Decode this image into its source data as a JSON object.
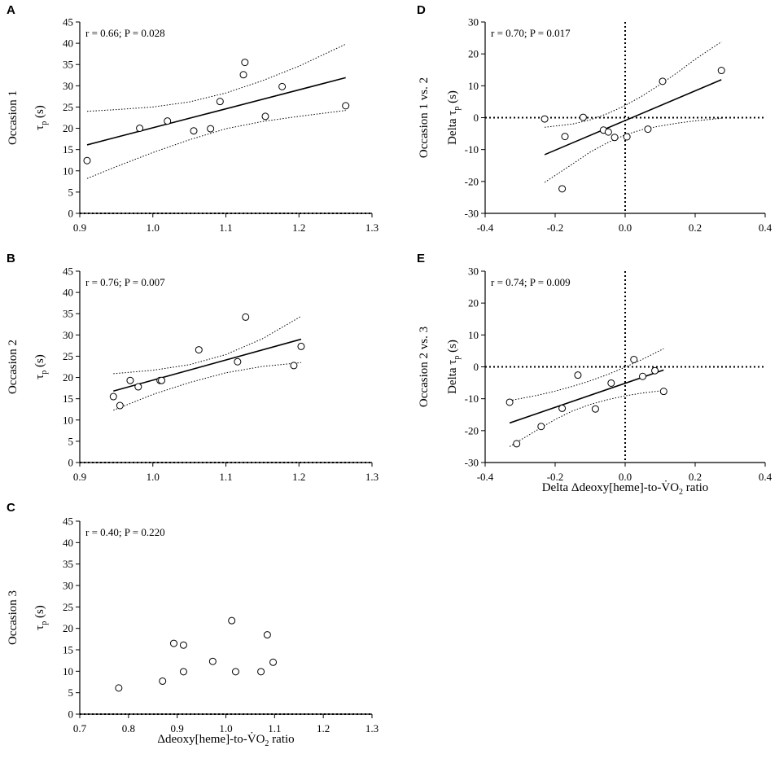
{
  "figure": {
    "x_axis_title_prefix": "Δdeoxy[heme]-to-",
    "x_axis_title_vo2": "V̇O",
    "x_axis_title_sub": "2",
    "x_axis_title_suffix": " ratio",
    "delta_x_axis_title_prefix": "Delta Δdeoxy[heme]-to-",
    "tau_symbol": "τ",
    "tau_subscript": "p",
    "tau_unit": " (s)",
    "delta_prefix": "Delta "
  },
  "chart_data": [
    {
      "id": "A",
      "type": "scatter",
      "panel_label": "A",
      "row_label": "Occasion 1",
      "stat_text": "r = 0.66; P = 0.028",
      "xlim": [
        0.9,
        1.3
      ],
      "xticks": [
        0.9,
        1.0,
        1.1,
        1.2,
        1.3
      ],
      "ylim": [
        0,
        45
      ],
      "yticks": [
        0,
        5,
        10,
        15,
        20,
        25,
        30,
        35,
        40,
        45
      ],
      "xticklabels": [
        "0.9",
        "1.0",
        "1.1",
        "1.2",
        "1.3"
      ],
      "yticklabels": [
        "0",
        "5",
        "10",
        "15",
        "20",
        "25",
        "30",
        "35",
        "40",
        "45"
      ],
      "points": [
        [
          0.91,
          12.4
        ],
        [
          0.982,
          20.0
        ],
        [
          1.02,
          21.7
        ],
        [
          1.056,
          19.4
        ],
        [
          1.079,
          19.9
        ],
        [
          1.092,
          26.3
        ],
        [
          1.124,
          32.6
        ],
        [
          1.126,
          35.5
        ],
        [
          1.154,
          22.8
        ],
        [
          1.177,
          29.8
        ],
        [
          1.264,
          25.3
        ]
      ],
      "fit": [
        [
          0.91,
          16.1
        ],
        [
          1.264,
          31.9
        ]
      ],
      "ci_upper": [
        [
          0.91,
          24.0
        ],
        [
          0.95,
          24.4
        ],
        [
          1.0,
          25.0
        ],
        [
          1.05,
          26.2
        ],
        [
          1.1,
          28.3
        ],
        [
          1.15,
          31.2
        ],
        [
          1.2,
          34.6
        ],
        [
          1.264,
          39.8
        ]
      ],
      "ci_lower": [
        [
          0.91,
          8.2
        ],
        [
          0.95,
          11.0
        ],
        [
          1.0,
          14.3
        ],
        [
          1.05,
          17.3
        ],
        [
          1.1,
          19.9
        ],
        [
          1.15,
          21.6
        ],
        [
          1.2,
          22.8
        ],
        [
          1.264,
          24.2
        ]
      ],
      "hlines": [
        0
      ],
      "vlines": []
    },
    {
      "id": "B",
      "type": "scatter",
      "panel_label": "B",
      "row_label": "Occasion 2",
      "stat_text": "r = 0.76; P = 0.007",
      "xlim": [
        0.9,
        1.3
      ],
      "xticks": [
        0.9,
        1.0,
        1.1,
        1.2,
        1.3
      ],
      "ylim": [
        0,
        45
      ],
      "yticks": [
        0,
        5,
        10,
        15,
        20,
        25,
        30,
        35,
        40,
        45
      ],
      "xticklabels": [
        "0.9",
        "1.0",
        "1.1",
        "1.2",
        "1.3"
      ],
      "yticklabels": [
        "0",
        "5",
        "10",
        "15",
        "20",
        "25",
        "30",
        "35",
        "40",
        "45"
      ],
      "points": [
        [
          0.946,
          15.5
        ],
        [
          0.955,
          13.4
        ],
        [
          0.969,
          19.3
        ],
        [
          0.98,
          17.8
        ],
        [
          1.01,
          19.3
        ],
        [
          1.012,
          19.3
        ],
        [
          1.063,
          26.5
        ],
        [
          1.116,
          23.7
        ],
        [
          1.127,
          34.2
        ],
        [
          1.193,
          22.8
        ],
        [
          1.203,
          27.3
        ]
      ],
      "fit": [
        [
          0.946,
          16.8
        ],
        [
          1.203,
          29.0
        ]
      ],
      "ci_upper": [
        [
          0.946,
          20.9
        ],
        [
          1.0,
          21.7
        ],
        [
          1.05,
          23.0
        ],
        [
          1.1,
          25.4
        ],
        [
          1.15,
          29.1
        ],
        [
          1.203,
          34.4
        ]
      ],
      "ci_lower": [
        [
          0.946,
          12.3
        ],
        [
          1.0,
          16.0
        ],
        [
          1.05,
          18.8
        ],
        [
          1.1,
          21.1
        ],
        [
          1.15,
          22.6
        ],
        [
          1.203,
          23.5
        ]
      ],
      "hlines": [
        0
      ],
      "vlines": []
    },
    {
      "id": "C",
      "type": "scatter",
      "panel_label": "C",
      "row_label": "Occasion 3",
      "stat_text": "r = 0.40; P = 0.220",
      "xlim": [
        0.7,
        1.3
      ],
      "xticks": [
        0.7,
        0.8,
        0.9,
        1.0,
        1.1,
        1.2,
        1.3
      ],
      "ylim": [
        0,
        45
      ],
      "yticks": [
        0,
        5,
        10,
        15,
        20,
        25,
        30,
        35,
        40,
        45
      ],
      "xticklabels": [
        "0.7",
        "0.8",
        "0.9",
        "1.0",
        "1.1",
        "1.2",
        "1.3"
      ],
      "yticklabels": [
        "0",
        "5",
        "10",
        "15",
        "20",
        "25",
        "30",
        "35",
        "40",
        "45"
      ],
      "points": [
        [
          0.78,
          6.1
        ],
        [
          0.87,
          7.7
        ],
        [
          0.893,
          16.5
        ],
        [
          0.913,
          16.1
        ],
        [
          0.913,
          9.9
        ],
        [
          0.973,
          12.3
        ],
        [
          1.012,
          21.8
        ],
        [
          1.02,
          9.9
        ],
        [
          1.072,
          9.9
        ],
        [
          1.085,
          18.5
        ],
        [
          1.097,
          12.1
        ]
      ],
      "fit": null,
      "ci_upper": null,
      "ci_lower": null,
      "hlines": [
        0
      ],
      "vlines": []
    },
    {
      "id": "D",
      "type": "scatter",
      "panel_label": "D",
      "row_label": "Occasion 1 vs. 2",
      "stat_text": "r = 0.70; P = 0.017",
      "xlim": [
        -0.4,
        0.4
      ],
      "xticks": [
        -0.4,
        -0.2,
        0.0,
        0.2,
        0.4
      ],
      "ylim": [
        -30,
        30
      ],
      "yticks": [
        -30,
        -20,
        -10,
        0,
        10,
        20,
        30
      ],
      "xticklabels": [
        "-0.4",
        "-0.2",
        "0.0",
        "0.2",
        "0.4"
      ],
      "yticklabels": [
        "-30",
        "-20",
        "-10",
        "0",
        "10",
        "20",
        "30"
      ],
      "points": [
        [
          -0.23,
          -0.4
        ],
        [
          -0.18,
          -22.3
        ],
        [
          -0.172,
          -5.9
        ],
        [
          -0.12,
          0.1
        ],
        [
          -0.062,
          -3.9
        ],
        [
          -0.048,
          -4.5
        ],
        [
          -0.03,
          -6.2
        ],
        [
          0.005,
          -6.0
        ],
        [
          0.065,
          -3.6
        ],
        [
          0.107,
          11.4
        ],
        [
          0.275,
          14.8
        ]
      ],
      "fit": [
        [
          -0.23,
          -11.6
        ],
        [
          0.275,
          11.9
        ]
      ],
      "ci_upper": [
        [
          -0.23,
          -3.0
        ],
        [
          -0.15,
          -2.0
        ],
        [
          -0.1,
          -0.7
        ],
        [
          -0.05,
          1.3
        ],
        [
          0.0,
          3.8
        ],
        [
          0.05,
          6.9
        ],
        [
          0.1,
          10.4
        ],
        [
          0.15,
          14.2
        ],
        [
          0.2,
          18.3
        ],
        [
          0.275,
          23.8
        ]
      ],
      "ci_lower": [
        [
          -0.23,
          -20.3
        ],
        [
          -0.15,
          -14.5
        ],
        [
          -0.1,
          -10.8
        ],
        [
          -0.05,
          -7.8
        ],
        [
          0.0,
          -5.4
        ],
        [
          0.05,
          -3.7
        ],
        [
          0.1,
          -2.6
        ],
        [
          0.15,
          -1.7
        ],
        [
          0.2,
          -1.0
        ],
        [
          0.275,
          -0.2
        ]
      ],
      "hlines": [
        0
      ],
      "vlines": [
        0
      ]
    },
    {
      "id": "E",
      "type": "scatter",
      "panel_label": "E",
      "row_label": "Occasion 2 vs. 3",
      "stat_text": "r = 0.74; P = 0.009",
      "xlim": [
        -0.4,
        0.4
      ],
      "xticks": [
        -0.4,
        -0.2,
        0.0,
        0.2,
        0.4
      ],
      "ylim": [
        -30,
        30
      ],
      "yticks": [
        -30,
        -20,
        -10,
        0,
        10,
        20,
        30
      ],
      "xticklabels": [
        "-0.4",
        "-0.2",
        "0.0",
        "0.2",
        "0.4"
      ],
      "yticklabels": [
        "-30",
        "-20",
        "-10",
        "0",
        "10",
        "20",
        "30"
      ],
      "points": [
        [
          -0.33,
          -11.1
        ],
        [
          -0.31,
          -24.1
        ],
        [
          -0.24,
          -18.7
        ],
        [
          -0.18,
          -13.0
        ],
        [
          -0.135,
          -2.6
        ],
        [
          -0.085,
          -13.2
        ],
        [
          -0.04,
          -5.1
        ],
        [
          0.025,
          2.3
        ],
        [
          0.05,
          -3.0
        ],
        [
          0.085,
          -1.2
        ],
        [
          0.11,
          -7.7
        ]
      ],
      "fit": [
        [
          -0.33,
          -17.6
        ],
        [
          0.11,
          -1.0
        ]
      ],
      "ci_upper": [
        [
          -0.33,
          -10.6
        ],
        [
          -0.25,
          -8.9
        ],
        [
          -0.2,
          -7.6
        ],
        [
          -0.15,
          -6.1
        ],
        [
          -0.1,
          -4.4
        ],
        [
          -0.05,
          -2.4
        ],
        [
          0.0,
          -0.1
        ],
        [
          0.05,
          2.4
        ],
        [
          0.11,
          5.7
        ]
      ],
      "ci_lower": [
        [
          -0.33,
          -25.0
        ],
        [
          -0.25,
          -19.7
        ],
        [
          -0.2,
          -16.5
        ],
        [
          -0.15,
          -13.8
        ],
        [
          -0.1,
          -11.8
        ],
        [
          -0.05,
          -10.3
        ],
        [
          0.0,
          -9.1
        ],
        [
          0.05,
          -8.2
        ],
        [
          0.11,
          -7.4
        ]
      ],
      "hlines": [
        0
      ],
      "vlines": [
        0
      ]
    }
  ]
}
